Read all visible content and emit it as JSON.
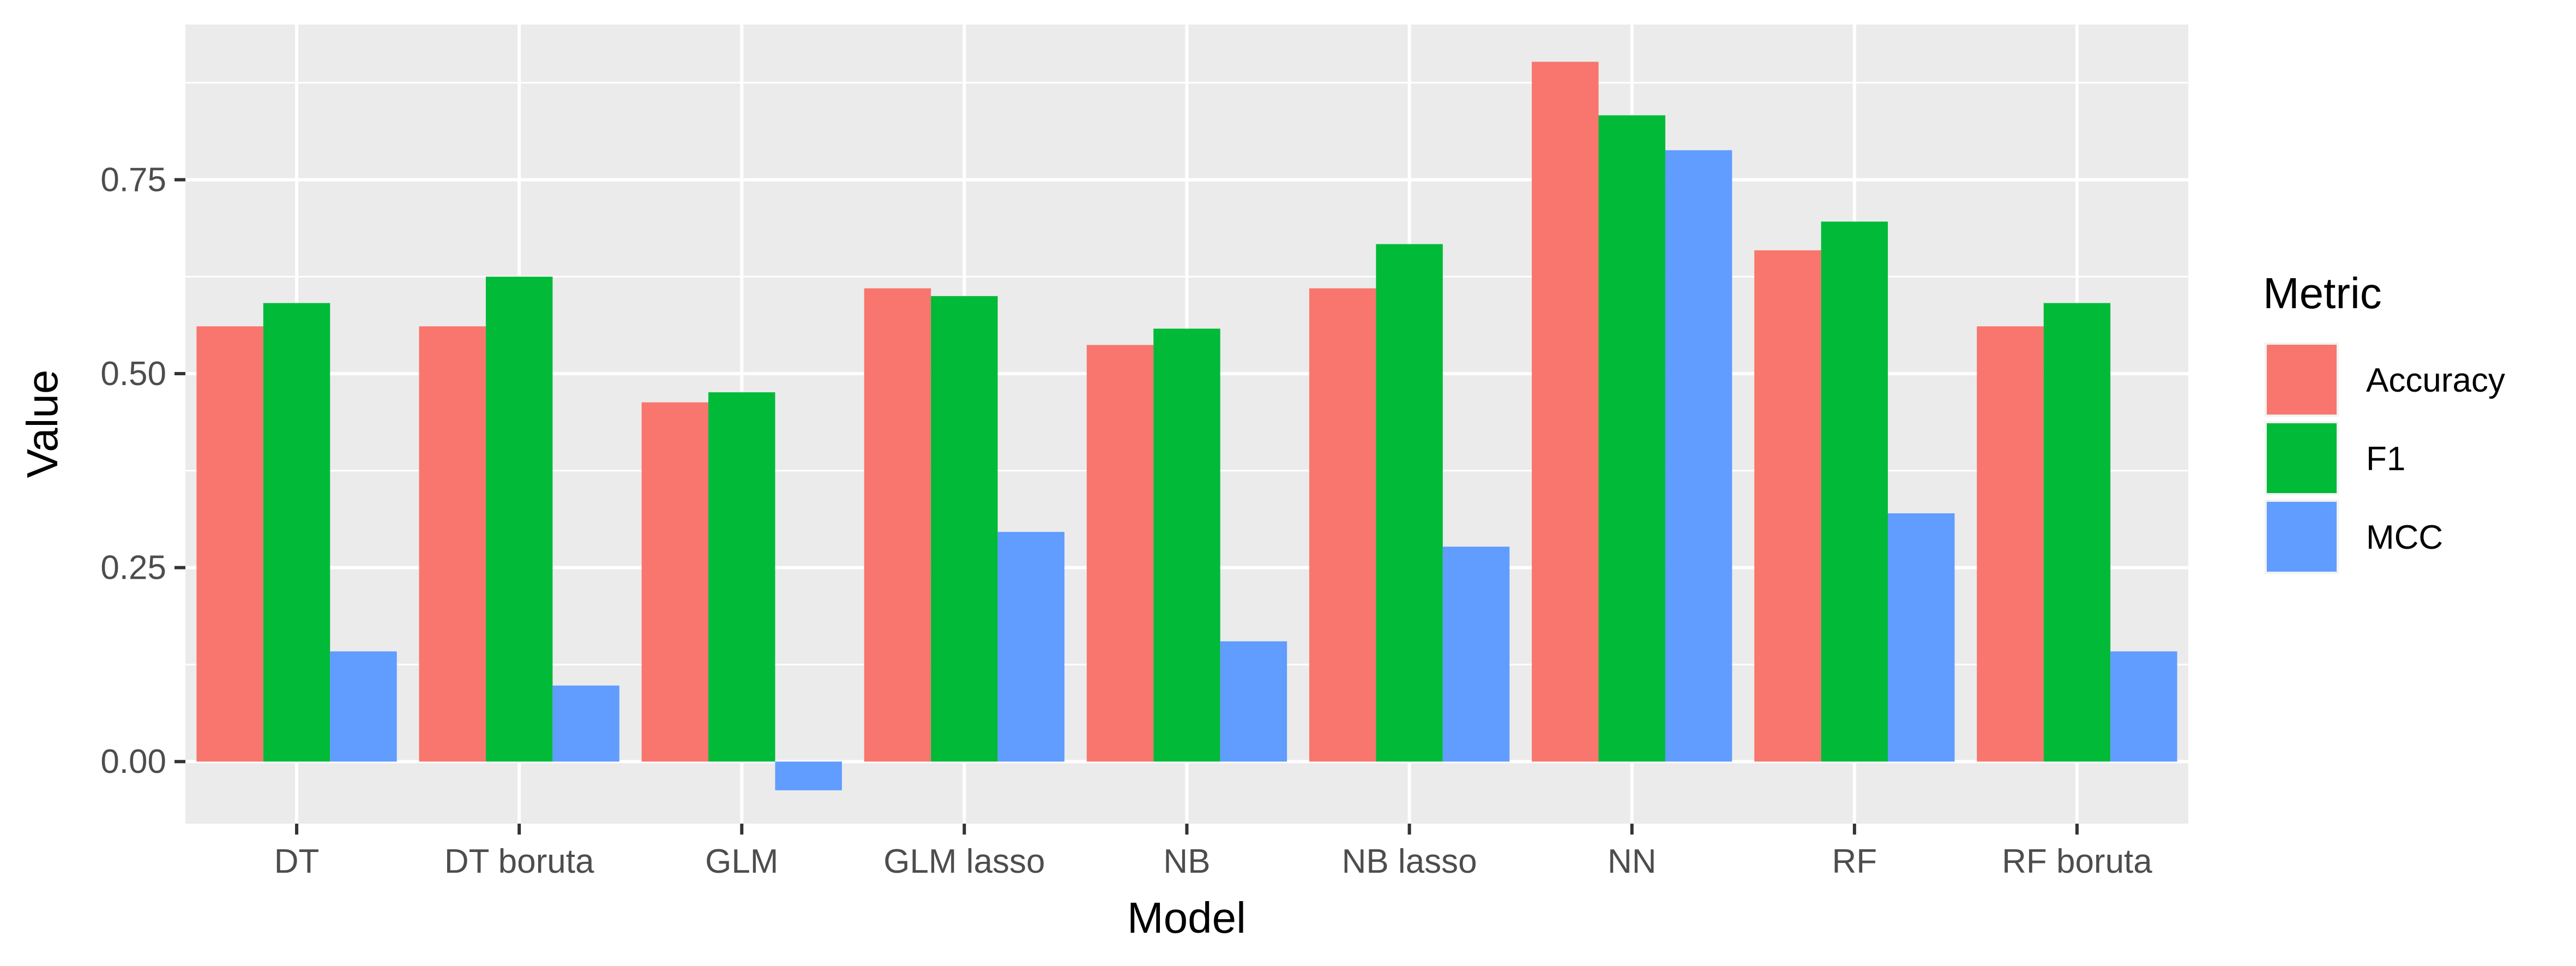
{
  "chart_data": {
    "type": "bar",
    "title": "",
    "xlabel": "Model",
    "ylabel": "Value",
    "categories": [
      "DT",
      "DT boruta",
      "GLM",
      "GLM lasso",
      "NB",
      "NB lasso",
      "NN",
      "RF",
      "RF boruta"
    ],
    "series": [
      {
        "name": "Accuracy",
        "color": "#F8766D",
        "values": [
          0.561,
          0.561,
          0.463,
          0.61,
          0.537,
          0.61,
          0.902,
          0.659,
          0.561
        ]
      },
      {
        "name": "F1",
        "color": "#00BA38",
        "values": [
          0.591,
          0.625,
          0.476,
          0.6,
          0.558,
          0.667,
          0.833,
          0.696,
          0.591
        ]
      },
      {
        "name": "MCC",
        "color": "#619CFF",
        "values": [
          0.142,
          0.098,
          -0.037,
          0.296,
          0.155,
          0.277,
          0.788,
          0.32,
          0.142
        ]
      }
    ],
    "ylim": [
      -0.08,
      0.95
    ],
    "yticks": [
      0.0,
      0.25,
      0.5,
      0.75
    ],
    "ytick_labels": [
      "0.00",
      "0.25",
      "0.50",
      "0.75"
    ],
    "grid": true,
    "legend": {
      "title": "Metric",
      "position": "right"
    }
  }
}
